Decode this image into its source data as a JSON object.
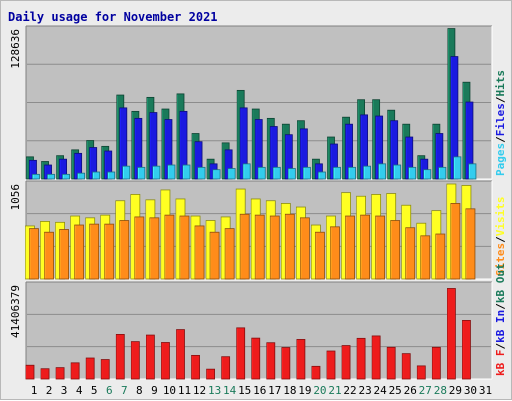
{
  "title": "Daily usage for November 2021",
  "colors": {
    "title": "#0000a0",
    "hits": "#1a7a5a",
    "files": "#1a1ae0",
    "pages": "#33ccee",
    "visits": "#ffff22",
    "sites": "#ff8c1a",
    "kb_in": "#1a1ae0",
    "kb_out": "#1a7a5a",
    "kb_f": "#ee1c1c",
    "panel_bg": "#c0c0c0",
    "weekend_label": "#1a7a5a",
    "weekday_label": "#000000"
  },
  "chart_data": [
    {
      "type": "bar",
      "panel": "top",
      "y_max_label": "128636",
      "ylim": [
        0,
        128636
      ],
      "legend": [
        {
          "key": "pages",
          "label": "Pages"
        },
        {
          "key": "sep1",
          "label": "/"
        },
        {
          "key": "files",
          "label": "Files"
        },
        {
          "key": "sep2",
          "label": "/"
        },
        {
          "key": "hits",
          "label": "Hits"
        }
      ],
      "series": [
        {
          "name": "Hits",
          "key": "hits",
          "values": [
            19000,
            15000,
            20000,
            25000,
            33000,
            28000,
            72000,
            58000,
            70000,
            60000,
            73000,
            39000,
            17000,
            31000,
            76000,
            60000,
            52000,
            47000,
            50000,
            17000,
            36000,
            53000,
            68000,
            68000,
            59000,
            47000,
            20000,
            47000,
            129000,
            83000
          ]
        },
        {
          "name": "Files",
          "key": "files",
          "values": [
            16000,
            12000,
            17000,
            22000,
            27000,
            24000,
            61000,
            52000,
            57000,
            51000,
            58000,
            32000,
            13000,
            25000,
            61000,
            51000,
            45000,
            38000,
            43000,
            13000,
            30000,
            47000,
            55000,
            54000,
            50000,
            36000,
            17000,
            39000,
            105000,
            66000
          ]
        },
        {
          "name": "Pages",
          "key": "pages",
          "values": [
            4000,
            4000,
            4000,
            5000,
            6000,
            6000,
            11000,
            10000,
            11000,
            12000,
            12000,
            10000,
            8000,
            9000,
            13000,
            10000,
            10000,
            9000,
            10000,
            6000,
            10000,
            10000,
            11000,
            13000,
            12000,
            10000,
            8000,
            10000,
            19000,
            13000
          ]
        }
      ]
    },
    {
      "type": "bar",
      "panel": "middle",
      "y_max_label": "1056",
      "ylim": [
        0,
        1056
      ],
      "legend": [
        {
          "key": "sites",
          "label": "Sites"
        },
        {
          "key": "sep1",
          "label": "/"
        },
        {
          "key": "visits",
          "label": "Visits"
        }
      ],
      "series": [
        {
          "name": "Visits",
          "key": "visits",
          "values": [
            590,
            640,
            630,
            700,
            680,
            710,
            870,
            940,
            880,
            990,
            890,
            700,
            650,
            690,
            1000,
            890,
            870,
            840,
            800,
            600,
            700,
            960,
            920,
            940,
            950,
            820,
            620,
            760,
            1056,
            1040
          ]
        },
        {
          "name": "Sites",
          "key": "sites",
          "values": [
            560,
            520,
            550,
            600,
            610,
            610,
            650,
            690,
            680,
            710,
            700,
            590,
            520,
            560,
            720,
            710,
            700,
            720,
            680,
            520,
            580,
            700,
            710,
            700,
            650,
            570,
            480,
            500,
            840,
            780
          ]
        }
      ]
    },
    {
      "type": "bar",
      "panel": "bottom",
      "y_max_label": "41406379",
      "ylim": [
        0,
        43000000
      ],
      "legend": [
        {
          "key": "kb_f",
          "label": "kB F"
        },
        {
          "key": "sep1",
          "label": "/"
        },
        {
          "key": "kb_in",
          "label": "kB In"
        },
        {
          "key": "sep2",
          "label": "/"
        },
        {
          "key": "kb_out",
          "label": "kB Out"
        }
      ],
      "series": [
        {
          "name": "kB F",
          "key": "kb_f",
          "values": [
            6300000,
            4700000,
            5200000,
            7400000,
            9600000,
            8900000,
            20400000,
            17100000,
            20100000,
            16700000,
            22600000,
            10800000,
            4500000,
            10200000,
            23400000,
            18700000,
            16600000,
            14400000,
            18100000,
            5800000,
            12800000,
            15300000,
            18600000,
            19700000,
            14500000,
            11600000,
            6000000,
            14500000,
            41406379,
            26800000
          ]
        }
      ]
    }
  ],
  "x_labels": [
    "1",
    "2",
    "3",
    "4",
    "5",
    "6",
    "7",
    "8",
    "9",
    "10",
    "11",
    "12",
    "13",
    "14",
    "15",
    "16",
    "17",
    "18",
    "19",
    "20",
    "21",
    "22",
    "23",
    "24",
    "25",
    "26",
    "27",
    "28",
    "29",
    "30",
    "31"
  ],
  "weekend_days": [
    6,
    7,
    13,
    14,
    20,
    21,
    27,
    28
  ]
}
